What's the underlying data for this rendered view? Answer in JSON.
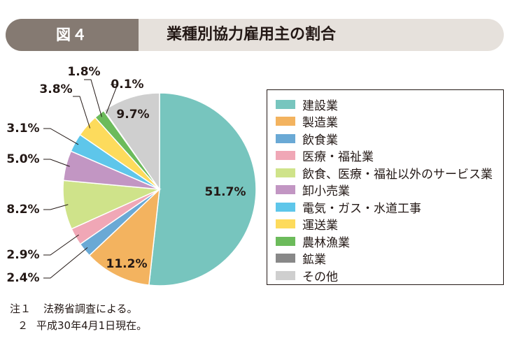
{
  "banner": {
    "figure_label": "図４",
    "title": "業種別協力雇用主の割合"
  },
  "chart_data": {
    "type": "pie",
    "title": "業種別協力雇用主の割合",
    "start": "12 o'clock, clockwise",
    "slices": [
      {
        "name": "建設業",
        "value": 51.7,
        "label": "51.7%",
        "color": "#77c5be"
      },
      {
        "name": "製造業",
        "value": 11.2,
        "label": "11.2%",
        "color": "#f3b35f"
      },
      {
        "name": "飲食業",
        "value": 2.4,
        "label": "2.4%",
        "color": "#6aa9d5"
      },
      {
        "name": "医療・福祉業",
        "value": 2.9,
        "label": "2.9%",
        "color": "#f0a7b6"
      },
      {
        "name": "飲食、医療・福祉以外のサービス業",
        "value": 8.2,
        "label": "8.2%",
        "color": "#cfe38a"
      },
      {
        "name": "卸小売業",
        "value": 5.0,
        "label": "5.0%",
        "color": "#c296c3"
      },
      {
        "name": "電気・ガス・水道工事",
        "value": 3.1,
        "label": "3.1%",
        "color": "#5ec6ea"
      },
      {
        "name": "運送業",
        "value": 3.8,
        "label": "3.8%",
        "color": "#fddb5c"
      },
      {
        "name": "農林漁業",
        "value": 1.8,
        "label": "1.8%",
        "color": "#6cbb5b"
      },
      {
        "name": "鉱業",
        "value": 0.1,
        "label": "0.1%",
        "color": "#888888"
      },
      {
        "name": "その他",
        "value": 9.7,
        "label": "9.7%",
        "color": "#cfcfcf"
      }
    ]
  },
  "notes": [
    {
      "mark": "注１",
      "text": "法務省調査による。"
    },
    {
      "mark": "２",
      "text": "平成30年4月1日現在。"
    }
  ]
}
